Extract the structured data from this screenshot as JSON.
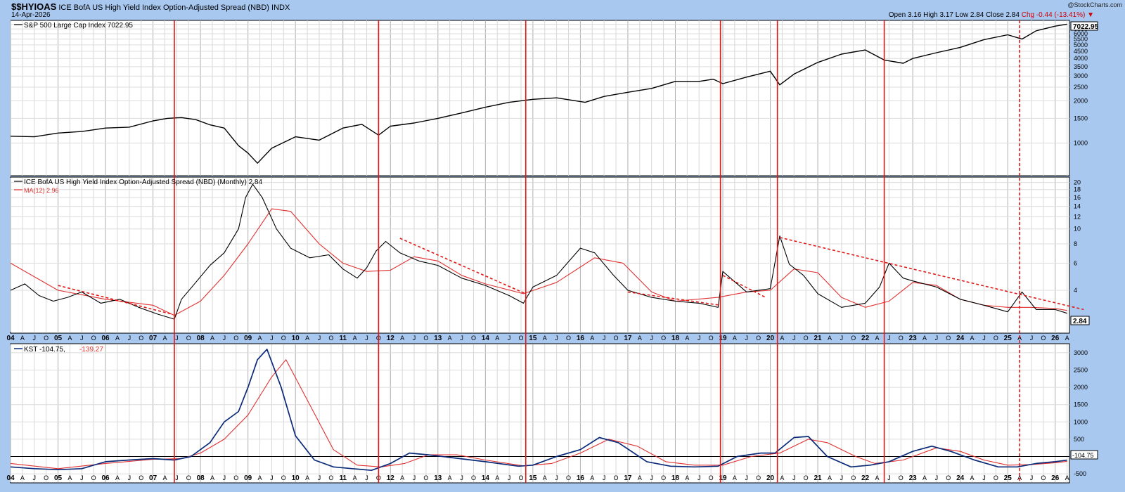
{
  "header": {
    "symbol": "$$HYIOAS",
    "name": "ICE BofA US High Yield Index Option-Adjusted Spread (NBD)",
    "exchange": "INDX",
    "date": "14-Apr-2026",
    "watermark": "@StockCharts.com",
    "ohlc": "Open 3.16  High 3.17  Low 2.84  Close 2.84",
    "chg": "Chg -0.44 (-13.41%) ▼"
  },
  "panels": {
    "spx_label": "S&P 500 Large Cap Index 7022.95",
    "spx_last": "7022.95",
    "hy_label": "ICE BofA US High Yield Index Option-Adjusted Spread (NBD) (Monthly) 2.84",
    "ma_label": "MA(12) 2.96",
    "hy_last": "2.84",
    "kst_label_a": "KST -104.75,",
    "kst_label_b": "-139.27",
    "kst_last": "-104.75"
  },
  "colors": {
    "price": "#000000",
    "ma": "#e03030",
    "kst": "#0a2a78",
    "signal": "#e01818",
    "bg": "#a9c8f0"
  },
  "chart_data": [
    {
      "type": "line",
      "name": "S&P 500 Large Cap Index",
      "scale": "log",
      "ylim": [
        600,
        7300
      ],
      "yticks": [
        1000,
        1500,
        2000,
        2500,
        3000,
        3500,
        4000,
        4500,
        5000,
        5500,
        6000,
        6500,
        7000
      ],
      "x": [
        2004.0,
        2004.5,
        2005.0,
        2005.5,
        2006.0,
        2006.5,
        2007.0,
        2007.3,
        2007.6,
        2007.9,
        2008.2,
        2008.5,
        2008.8,
        2009.0,
        2009.2,
        2009.5,
        2010.0,
        2010.5,
        2011.0,
        2011.4,
        2011.75,
        2012.0,
        2012.5,
        2013.0,
        2013.5,
        2014.0,
        2014.5,
        2015.0,
        2015.5,
        2016.1,
        2016.5,
        2017.0,
        2017.5,
        2018.0,
        2018.5,
        2018.8,
        2019.0,
        2019.5,
        2020.0,
        2020.2,
        2020.5,
        2021.0,
        2021.5,
        2022.0,
        2022.4,
        2022.8,
        2023.0,
        2023.5,
        2024.0,
        2024.5,
        2025.0,
        2025.3,
        2025.6,
        2026.0,
        2026.25
      ],
      "values": [
        1120,
        1110,
        1180,
        1210,
        1280,
        1300,
        1440,
        1500,
        1520,
        1470,
        1350,
        1280,
        960,
        850,
        720,
        920,
        1110,
        1050,
        1280,
        1360,
        1140,
        1320,
        1390,
        1500,
        1640,
        1800,
        1950,
        2050,
        2100,
        1950,
        2150,
        2300,
        2450,
        2750,
        2750,
        2850,
        2650,
        2950,
        3250,
        2600,
        3100,
        3750,
        4300,
        4600,
        3900,
        3700,
        4000,
        4400,
        4800,
        5450,
        5900,
        5500,
        6300,
        6800,
        7023
      ]
    },
    {
      "type": "line",
      "name": "ICE BofA US High Yield Index Option-Adjusted Spread (NBD) (Monthly)",
      "scale": "log",
      "ylim": [
        2.2,
        21
      ],
      "yticks": [
        4,
        6,
        8,
        10,
        12,
        14,
        16,
        18,
        20
      ],
      "series": [
        {
          "name": "ICE BofA US High Yield Index Option-Adjusted Spread (NBD)",
          "x": [
            2004.0,
            2004.3,
            2004.6,
            2004.9,
            2005.2,
            2005.5,
            2005.9,
            2006.3,
            2006.7,
            2007.1,
            2007.45,
            2007.6,
            2007.9,
            2008.2,
            2008.5,
            2008.8,
            2008.95,
            2009.1,
            2009.3,
            2009.6,
            2009.9,
            2010.3,
            2010.7,
            2011.0,
            2011.3,
            2011.5,
            2011.7,
            2011.9,
            2012.2,
            2012.6,
            2013.0,
            2013.5,
            2014.0,
            2014.5,
            2014.8,
            2015.0,
            2015.5,
            2016.0,
            2016.3,
            2016.7,
            2017.0,
            2017.5,
            2018.0,
            2018.5,
            2018.9,
            2019.0,
            2019.5,
            2020.0,
            2020.2,
            2020.4,
            2020.7,
            2021.0,
            2021.5,
            2022.0,
            2022.3,
            2022.5,
            2022.8,
            2023.0,
            2023.5,
            2024.0,
            2024.5,
            2025.0,
            2025.3,
            2025.6,
            2026.0,
            2026.25
          ],
          "values": [
            4.0,
            4.4,
            3.7,
            3.4,
            3.6,
            3.9,
            3.3,
            3.5,
            3.1,
            2.8,
            2.6,
            3.5,
            4.5,
            5.8,
            7.0,
            10.0,
            16.0,
            19.5,
            16.0,
            10.0,
            7.5,
            6.5,
            6.8,
            5.5,
            4.8,
            5.6,
            7.2,
            8.3,
            7.0,
            6.2,
            5.8,
            4.8,
            4.3,
            3.7,
            3.3,
            4.2,
            5.0,
            7.5,
            7.0,
            5.0,
            4.0,
            3.6,
            3.4,
            3.3,
            3.1,
            5.3,
            3.9,
            4.1,
            9.0,
            5.9,
            5.0,
            3.8,
            3.1,
            3.3,
            4.2,
            6.0,
            4.8,
            4.6,
            4.2,
            3.5,
            3.2,
            2.9,
            3.9,
            3.0,
            3.0,
            2.84
          ]
        },
        {
          "name": "MA(12)",
          "x": [
            2004.0,
            2005.0,
            2006.0,
            2007.0,
            2007.45,
            2008.0,
            2008.5,
            2009.0,
            2009.5,
            2009.9,
            2010.5,
            2011.0,
            2011.5,
            2012.0,
            2012.5,
            2013.0,
            2013.5,
            2014.0,
            2014.8,
            2015.5,
            2016.3,
            2016.9,
            2017.5,
            2018.0,
            2018.9,
            2019.5,
            2020.0,
            2020.5,
            2021.0,
            2021.5,
            2022.0,
            2022.5,
            2023.0,
            2023.5,
            2024.0,
            2024.5,
            2025.0,
            2025.5,
            2026.0,
            2026.25
          ],
          "values": [
            6.0,
            4.0,
            3.5,
            3.2,
            2.75,
            3.4,
            5.0,
            8.0,
            13.5,
            13.0,
            8.0,
            6.0,
            5.3,
            5.4,
            6.6,
            6.2,
            5.0,
            4.4,
            3.8,
            4.5,
            6.5,
            6.0,
            3.9,
            3.4,
            3.6,
            3.9,
            4.0,
            5.5,
            5.2,
            3.6,
            3.1,
            3.4,
            4.5,
            4.3,
            3.5,
            3.2,
            3.1,
            3.1,
            3.05,
            2.96
          ]
        }
      ],
      "trendlines": [
        {
          "x": [
            2005.0,
            2007.4
          ],
          "values": [
            4.3,
            2.8
          ]
        },
        {
          "x": [
            2012.2,
            2014.85
          ],
          "values": [
            8.7,
            3.8
          ]
        },
        {
          "x": [
            2017.0,
            2018.95
          ],
          "values": [
            3.9,
            3.2
          ]
        },
        {
          "x": [
            2019.0,
            2019.9
          ],
          "values": [
            5.0,
            3.6
          ]
        },
        {
          "x": [
            2020.2,
            2026.6
          ],
          "values": [
            8.8,
            3.0
          ]
        }
      ]
    },
    {
      "type": "line",
      "name": "KST",
      "ylim": [
        -700,
        3200
      ],
      "yticks": [
        -500,
        0,
        500,
        1000,
        1500,
        2000,
        2500,
        3000
      ],
      "series": [
        {
          "name": "KST",
          "x": [
            2004.0,
            2004.5,
            2005.0,
            2005.5,
            2006.0,
            2006.5,
            2007.0,
            2007.45,
            2007.8,
            2008.2,
            2008.5,
            2008.8,
            2009.0,
            2009.2,
            2009.4,
            2009.7,
            2010.0,
            2010.4,
            2010.8,
            2011.2,
            2011.6,
            2012.0,
            2012.4,
            2012.8,
            2013.4,
            2014.0,
            2014.7,
            2015.0,
            2015.5,
            2016.0,
            2016.4,
            2016.8,
            2017.4,
            2017.9,
            2018.4,
            2018.9,
            2019.3,
            2019.8,
            2020.1,
            2020.5,
            2020.8,
            2021.2,
            2021.7,
            2022.1,
            2022.5,
            2023.0,
            2023.4,
            2023.8,
            2024.3,
            2024.8,
            2025.2,
            2025.6,
            2026.0,
            2026.25
          ],
          "values": [
            -300,
            -350,
            -380,
            -350,
            -150,
            -100,
            -60,
            -100,
            0,
            400,
            1000,
            1300,
            2000,
            2800,
            3100,
            2000,
            600,
            -100,
            -300,
            -350,
            -400,
            -200,
            100,
            50,
            -50,
            -150,
            -280,
            -250,
            0,
            200,
            550,
            400,
            -150,
            -280,
            -300,
            -280,
            0,
            100,
            100,
            550,
            580,
            0,
            -300,
            -250,
            -150,
            150,
            300,
            150,
            -100,
            -300,
            -300,
            -200,
            -150,
            -105
          ]
        },
        {
          "name": "Signal",
          "x": [
            2004.0,
            2005.0,
            2006.0,
            2007.0,
            2007.6,
            2008.0,
            2008.5,
            2009.0,
            2009.5,
            2009.8,
            2010.3,
            2010.8,
            2011.3,
            2011.8,
            2012.3,
            2012.8,
            2013.4,
            2014.0,
            2014.8,
            2015.4,
            2016.0,
            2016.6,
            2017.2,
            2017.8,
            2018.4,
            2019.0,
            2019.6,
            2020.2,
            2020.8,
            2021.2,
            2021.8,
            2022.2,
            2022.8,
            2023.5,
            2024.0,
            2024.5,
            2025.0,
            2025.5,
            2026.0,
            2026.25
          ],
          "values": [
            -200,
            -350,
            -200,
            -80,
            -60,
            100,
            500,
            1200,
            2300,
            2800,
            1500,
            200,
            -250,
            -300,
            -200,
            50,
            50,
            -100,
            -270,
            -200,
            100,
            500,
            300,
            -150,
            -250,
            -250,
            0,
            100,
            500,
            400,
            0,
            -200,
            -100,
            250,
            150,
            -100,
            -250,
            -230,
            -180,
            -139
          ]
        }
      ],
      "zero_line": 0
    }
  ],
  "x_axis": {
    "xlim": [
      2004.0,
      2026.3
    ],
    "years": [
      "04",
      "05",
      "06",
      "07",
      "08",
      "09",
      "10",
      "11",
      "12",
      "13",
      "14",
      "15",
      "16",
      "17",
      "18",
      "19",
      "20",
      "21",
      "22",
      "23",
      "24",
      "25",
      "26"
    ],
    "month_letters": [
      "A",
      "J",
      "O"
    ],
    "signal_lines": [
      {
        "x": 2007.45,
        "style": "solid"
      },
      {
        "x": 2011.75,
        "style": "solid"
      },
      {
        "x": 2014.85,
        "style": "solid"
      },
      {
        "x": 2018.95,
        "style": "solid"
      },
      {
        "x": 2020.15,
        "style": "solid"
      },
      {
        "x": 2022.4,
        "style": "solid"
      },
      {
        "x": 2025.25,
        "style": "dashed"
      }
    ]
  }
}
